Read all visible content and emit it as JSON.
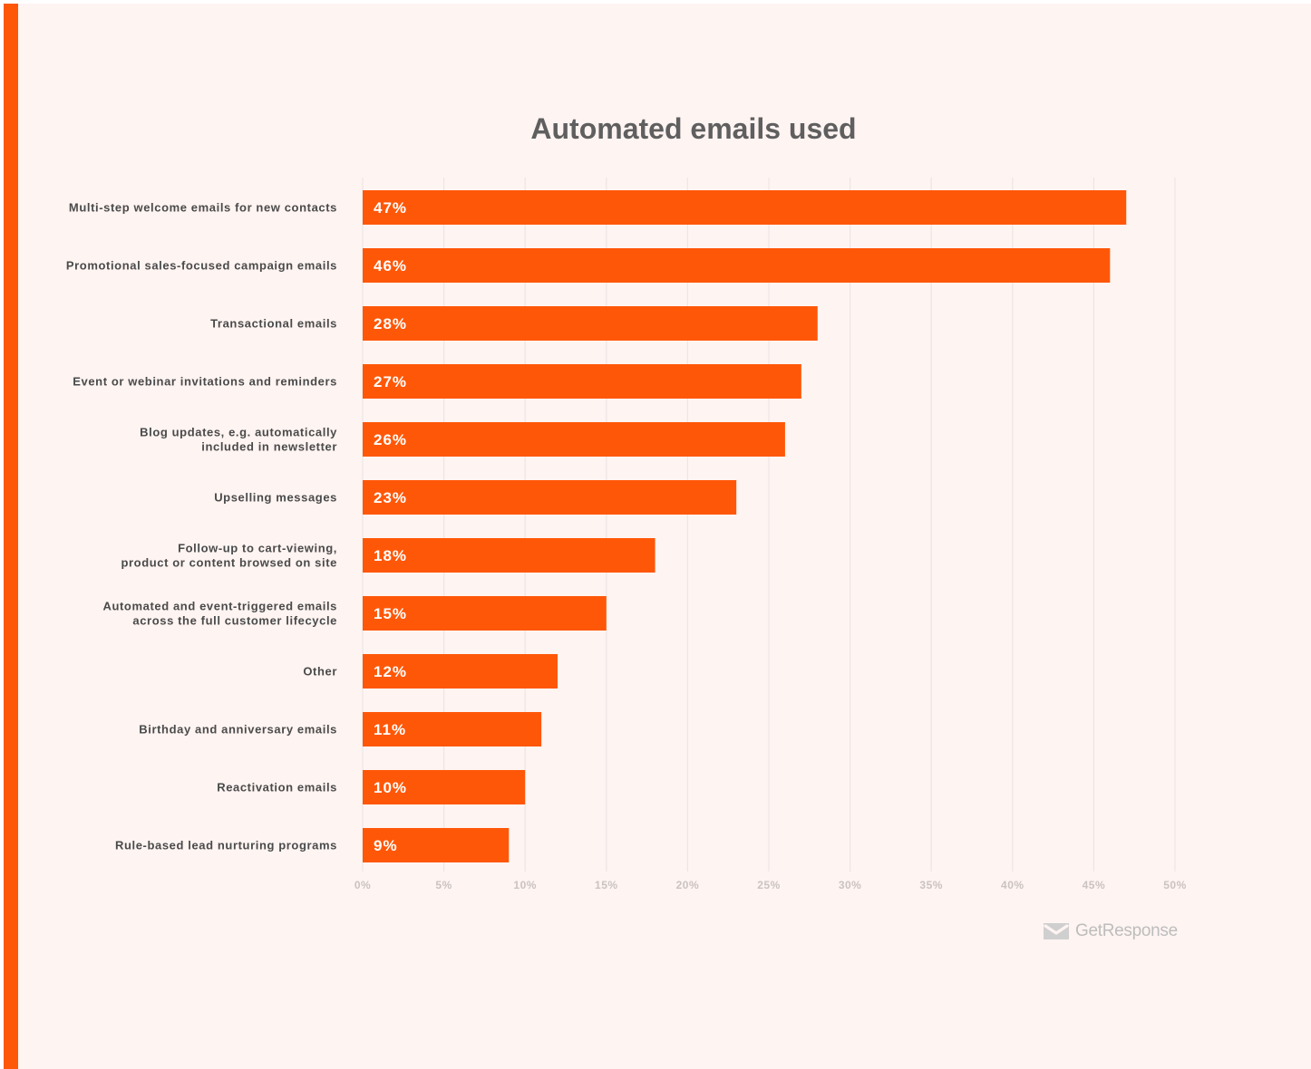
{
  "chart_data": {
    "type": "bar",
    "orientation": "horizontal",
    "title": "Automated emails used",
    "xlabel": "",
    "ylabel": "",
    "categories": [
      [
        "Multi-step welcome emails for new contacts"
      ],
      [
        "Promotional sales-focused campaign emails"
      ],
      [
        "Transactional emails"
      ],
      [
        "Event or webinar invitations and reminders"
      ],
      [
        "Blog updates, e.g. automatically",
        "included in newsletter"
      ],
      [
        "Upselling messages"
      ],
      [
        "Follow-up to cart-viewing,",
        "product or content browsed on site"
      ],
      [
        "Automated and event-triggered emails",
        "across the full customer lifecycle"
      ],
      [
        "Other"
      ],
      [
        "Birthday and anniversary emails"
      ],
      [
        "Reactivation emails"
      ],
      [
        "Rule-based lead nurturing programs"
      ]
    ],
    "values": [
      47,
      46,
      28,
      27,
      26,
      23,
      18,
      15,
      12,
      11,
      10,
      9
    ],
    "value_labels": [
      "47%",
      "46%",
      "28%",
      "27%",
      "26%",
      "23%",
      "18%",
      "15%",
      "12%",
      "11%",
      "10%",
      "9%"
    ],
    "x_ticks": [
      0,
      5,
      10,
      15,
      20,
      25,
      30,
      35,
      40,
      45,
      50
    ],
    "x_tick_labels": [
      "0%",
      "5%",
      "10%",
      "15%",
      "20%",
      "25%",
      "30%",
      "35%",
      "40%",
      "45%",
      "50%"
    ],
    "xlim": [
      0,
      50
    ],
    "grid": true,
    "legend": "none"
  },
  "colors": {
    "bar": "#ff5708",
    "accent": "#ff5708",
    "background": "#fef4f2",
    "grid": "#ece6e4"
  },
  "brand": {
    "name": "GetResponse",
    "icon": "envelope-icon"
  }
}
